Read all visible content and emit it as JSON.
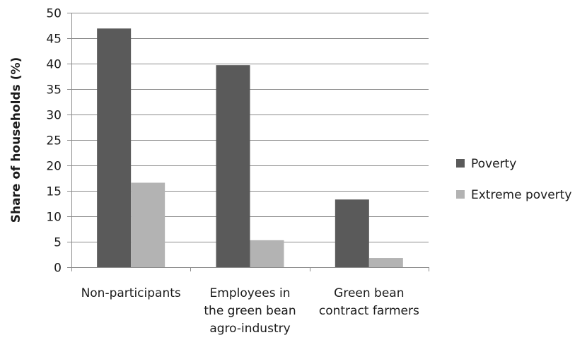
{
  "chart_data": {
    "type": "bar",
    "title": "",
    "xlabel": "",
    "ylabel": "Share of households (%)",
    "ylim": [
      0,
      50
    ],
    "ytick_step": 5,
    "grid": true,
    "legend_position": "right",
    "categories": [
      [
        "Non-participants"
      ],
      [
        "Employees in",
        "the green bean",
        "agro-industry"
      ],
      [
        "Green bean",
        "contract farmers"
      ]
    ],
    "series": [
      {
        "name": "Poverty",
        "color": "#5a5a5a",
        "values": [
          46.9,
          39.7,
          13.3
        ]
      },
      {
        "name": "Extreme poverty",
        "color": "#b3b3b3",
        "values": [
          16.6,
          5.3,
          1.8
        ]
      }
    ]
  }
}
